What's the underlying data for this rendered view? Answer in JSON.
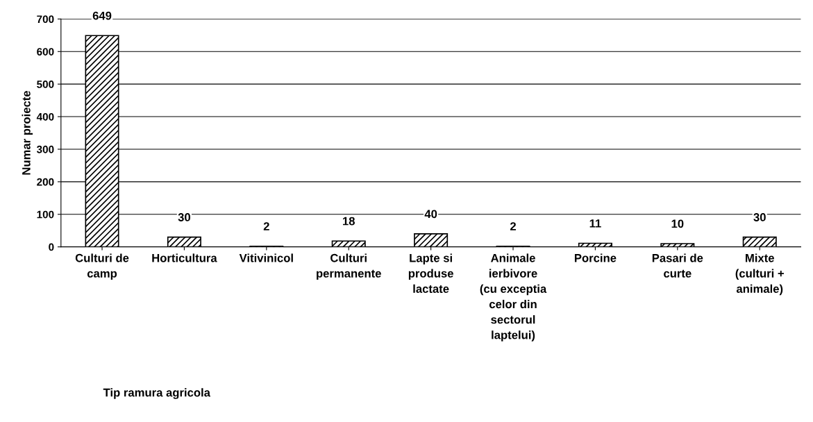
{
  "chart_data": {
    "type": "bar",
    "xlabel": "Tip ramura agricola",
    "ylabel": "Numar proiecte",
    "categories": [
      "Culturi de\ncamp",
      "Horticultura",
      "Vitivinicol",
      "Culturi\npermanente",
      "Lapte si\nproduse\nlactate",
      "Animale\nierbivore\n(cu exceptia\ncelor din\nsectorul\nlaptelui)",
      "Porcine",
      "Pasari de\ncurte",
      "Mixte\n(culturi +\nanimale)"
    ],
    "values": [
      649,
      30,
      2,
      18,
      40,
      2,
      11,
      10,
      30
    ],
    "color": "#000000",
    "ylim": [
      0,
      700
    ],
    "yticks": [
      0,
      100,
      200,
      300,
      400,
      500,
      600,
      700
    ],
    "grid": "y",
    "data_labels": true
  }
}
